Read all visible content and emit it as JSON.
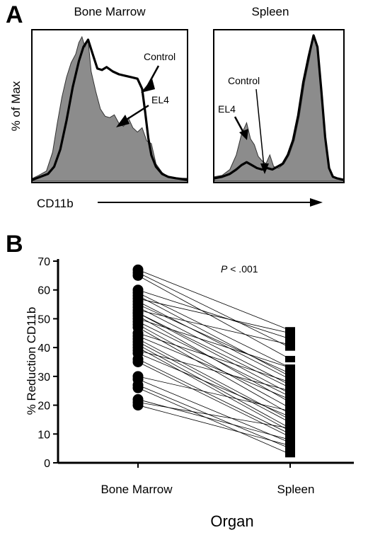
{
  "panel_a": {
    "letter": "A",
    "bone_marrow_title": "Bone Marrow",
    "spleen_title": "Spleen",
    "ylabel": "% of Max",
    "xlabel": "CD11b",
    "control_label": "Control",
    "el4_label": "EL4"
  },
  "panel_b": {
    "letter": "B",
    "pvalue_italic": "P",
    "pvalue_rest": " < .001"
  },
  "chart_data": [
    {
      "type": "area",
      "title": "Bone Marrow",
      "xlabel": "CD11b",
      "ylabel": "% of Max",
      "series": [
        {
          "name": "EL4",
          "style": "filled-gray",
          "x": [
            0,
            0.04,
            0.09,
            0.13,
            0.16,
            0.19,
            0.22,
            0.25,
            0.28,
            0.3,
            0.32,
            0.34,
            0.36,
            0.38,
            0.41,
            0.44,
            0.47,
            0.5,
            0.53,
            0.56,
            0.59,
            0.62,
            0.65,
            0.68,
            0.71,
            0.74,
            0.77,
            0.8,
            0.84,
            0.88,
            0.93,
            1
          ],
          "y": [
            2,
            4,
            7,
            20,
            40,
            58,
            72,
            82,
            88,
            96,
            100,
            93,
            98,
            76,
            62,
            50,
            45,
            44,
            46,
            40,
            38,
            44,
            37,
            34,
            37,
            28,
            26,
            12,
            6,
            3,
            2,
            2
          ]
        },
        {
          "name": "Control",
          "style": "black-line",
          "x": [
            0,
            0.05,
            0.1,
            0.14,
            0.18,
            0.22,
            0.26,
            0.3,
            0.33,
            0.36,
            0.39,
            0.42,
            0.45,
            0.48,
            0.52,
            0.56,
            0.6,
            0.64,
            0.68,
            0.71,
            0.73,
            0.75,
            0.77,
            0.8,
            0.84,
            0.88,
            0.93,
            1
          ],
          "y": [
            1,
            3,
            5,
            10,
            22,
            42,
            65,
            83,
            93,
            98,
            88,
            78,
            77,
            79,
            76,
            74,
            73,
            72,
            71,
            64,
            48,
            30,
            18,
            10,
            5,
            3,
            2,
            1
          ]
        }
      ]
    },
    {
      "type": "area",
      "title": "Spleen",
      "xlabel": "CD11b",
      "ylabel": "% of Max",
      "series": [
        {
          "name": "EL4",
          "style": "filled-gray",
          "x": [
            0,
            0.06,
            0.12,
            0.17,
            0.21,
            0.25,
            0.28,
            0.31,
            0.34,
            0.37,
            0.4,
            0.43,
            0.46,
            0.5,
            0.54,
            0.58,
            0.62,
            0.66,
            0.7,
            0.74,
            0.77,
            0.8,
            0.83,
            0.86,
            0.89,
            0.92,
            0.95,
            1
          ],
          "y": [
            3,
            4,
            8,
            18,
            32,
            40,
            29,
            25,
            17,
            14,
            12,
            18,
            10,
            9,
            12,
            18,
            28,
            45,
            68,
            85,
            100,
            92,
            62,
            30,
            9,
            3,
            2,
            1
          ]
        },
        {
          "name": "Control",
          "style": "black-line",
          "x": [
            0,
            0.06,
            0.12,
            0.17,
            0.21,
            0.25,
            0.29,
            0.33,
            0.37,
            0.41,
            0.45,
            0.49,
            0.53,
            0.57,
            0.61,
            0.65,
            0.69,
            0.73,
            0.77,
            0.8,
            0.83,
            0.86,
            0.89,
            0.92,
            0.95,
            1
          ],
          "y": [
            2,
            3,
            5,
            8,
            11,
            13,
            11,
            9,
            8,
            9,
            8,
            10,
            12,
            18,
            28,
            45,
            68,
            85,
            100,
            92,
            62,
            30,
            9,
            3,
            2,
            1
          ]
        }
      ]
    },
    {
      "type": "scatter",
      "subtype": "paired-points",
      "xlabel": "Organ",
      "ylabel": "% Reduction CD11b",
      "categories": [
        "Bone Marrow",
        "Spleen"
      ],
      "ylim": [
        0,
        70
      ],
      "yticks": [
        0,
        10,
        20,
        30,
        40,
        50,
        60,
        70
      ],
      "annotation": "P < .001",
      "pairs": [
        [
          67,
          46
        ],
        [
          66,
          40
        ],
        [
          65,
          36
        ],
        [
          60,
          43
        ],
        [
          59,
          33
        ],
        [
          58,
          30
        ],
        [
          57,
          45
        ],
        [
          56,
          29
        ],
        [
          55,
          31
        ],
        [
          54,
          27
        ],
        [
          53,
          41
        ],
        [
          52,
          26
        ],
        [
          52,
          24
        ],
        [
          51,
          21
        ],
        [
          50,
          33
        ],
        [
          49,
          23
        ],
        [
          48,
          19
        ],
        [
          47,
          17
        ],
        [
          45,
          28
        ],
        [
          44,
          22
        ],
        [
          43,
          15
        ],
        [
          42,
          14
        ],
        [
          41,
          12
        ],
        [
          40,
          11
        ],
        [
          39,
          25
        ],
        [
          38,
          16
        ],
        [
          36,
          10
        ],
        [
          35,
          9
        ],
        [
          30,
          18
        ],
        [
          29,
          7
        ],
        [
          27,
          5
        ],
        [
          26,
          3
        ],
        [
          22,
          8
        ],
        [
          21,
          12
        ],
        [
          20,
          6
        ]
      ]
    }
  ]
}
